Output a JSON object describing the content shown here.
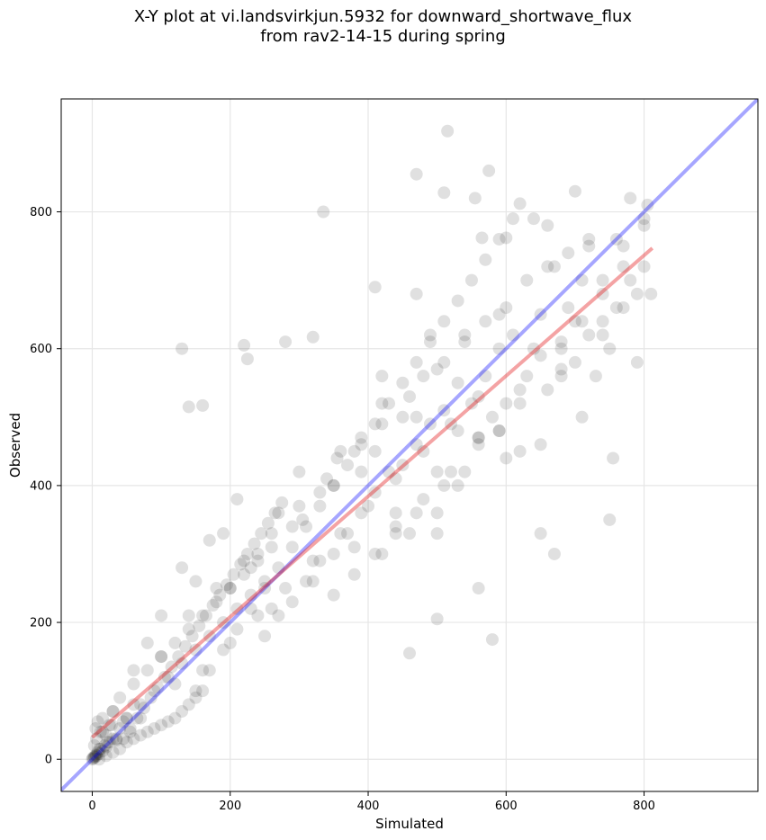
{
  "chart_data": {
    "type": "scatter",
    "title_lines": [
      "X-Y plot at vi.landsvirkjun.5932 for downward_shortwave_flux",
      "from rav2-14-15 during spring"
    ],
    "xlabel": "Simulated",
    "ylabel": "Observed",
    "xlim": [
      -45,
      965
    ],
    "ylim": [
      -47,
      965
    ],
    "xticks": [
      0,
      200,
      400,
      600,
      800
    ],
    "yticks": [
      0,
      200,
      400,
      600,
      800
    ],
    "grid": true,
    "colors": {
      "points": "#000000",
      "one_to_one": "#0000ff",
      "fit_line": "#e31a1c",
      "grid": "#e6e6e6"
    },
    "one_to_one_line": {
      "x": [
        -45,
        965
      ],
      "y": [
        -45,
        965
      ]
    },
    "fit_line": {
      "x": [
        0,
        812
      ],
      "y": [
        32,
        747
      ]
    },
    "points": {
      "x": [
        0,
        1,
        2,
        3,
        4,
        5,
        6,
        8,
        10,
        12,
        15,
        18,
        20,
        25,
        30,
        35,
        5,
        8,
        12,
        15,
        20,
        25,
        30,
        40,
        50,
        60,
        3,
        6,
        10,
        15,
        22,
        28,
        35,
        45,
        55,
        70,
        30,
        40,
        50,
        60,
        70,
        80,
        90,
        100,
        110,
        120,
        130,
        140,
        150,
        160,
        170,
        180,
        190,
        200,
        210,
        220,
        230,
        240,
        250,
        260,
        45,
        55,
        65,
        75,
        85,
        95,
        105,
        115,
        125,
        135,
        145,
        155,
        165,
        175,
        185,
        195,
        205,
        215,
        225,
        235,
        245,
        255,
        265,
        275,
        100,
        120,
        140,
        160,
        180,
        200,
        220,
        240,
        260,
        280,
        300,
        320,
        340,
        360,
        380,
        400,
        420,
        440,
        460,
        480,
        500,
        520,
        540,
        560,
        150,
        170,
        190,
        210,
        230,
        250,
        270,
        290,
        310,
        330,
        350,
        370,
        390,
        410,
        430,
        450,
        470,
        490,
        510,
        530,
        550,
        570,
        590,
        610,
        200,
        230,
        260,
        290,
        320,
        350,
        380,
        410,
        440,
        470,
        500,
        530,
        560,
        590,
        620,
        650,
        680,
        710,
        740,
        770,
        790,
        805,
        130,
        140,
        160,
        220,
        225,
        280,
        305,
        320,
        335,
        355,
        390,
        410,
        420,
        470,
        515,
        510,
        555,
        565,
        575,
        600,
        620,
        640,
        660,
        700,
        700,
        720,
        740,
        760,
        780,
        800,
        810,
        790,
        770,
        750,
        730,
        710,
        690,
        670,
        650,
        630,
        610,
        590,
        570,
        550,
        530,
        510,
        490,
        470,
        60,
        80,
        100,
        130,
        150,
        170,
        190,
        210,
        240,
        270,
        300,
        330,
        360,
        390,
        420,
        450,
        480,
        510,
        540,
        570,
        600,
        630,
        660,
        690,
        420,
        440,
        460,
        480,
        500,
        520,
        540,
        560,
        580,
        600,
        620,
        640,
        660,
        680,
        700,
        720,
        740,
        760,
        780,
        800,
        350,
        380,
        410,
        440,
        470,
        500,
        530,
        560,
        590,
        620,
        650,
        680,
        710,
        740,
        770,
        800,
        10,
        20,
        30,
        40,
        50,
        60,
        70,
        80,
        90,
        100,
        110,
        120,
        130,
        140,
        150,
        160,
        250,
        270,
        290,
        310,
        330,
        350,
        370,
        390,
        410,
        430,
        450,
        470,
        490,
        510,
        580,
        590,
        600,
        650,
        670,
        680,
        750,
        755,
        720,
        560,
        460,
        500
      ],
      "y": [
        0,
        2,
        1,
        4,
        3,
        6,
        5,
        10,
        8,
        15,
        12,
        20,
        18,
        25,
        30,
        28,
        45,
        55,
        40,
        60,
        35,
        50,
        70,
        45,
        60,
        80,
        20,
        30,
        15,
        40,
        25,
        50,
        30,
        55,
        40,
        60,
        70,
        90,
        60,
        110,
        80,
        130,
        100,
        150,
        120,
        170,
        140,
        190,
        160,
        210,
        180,
        230,
        200,
        250,
        220,
        270,
        240,
        290,
        260,
        310,
        30,
        45,
        60,
        75,
        90,
        105,
        120,
        135,
        150,
        165,
        180,
        195,
        210,
        225,
        240,
        255,
        270,
        285,
        300,
        315,
        330,
        345,
        360,
        375,
        150,
        110,
        210,
        130,
        250,
        170,
        290,
        210,
        330,
        250,
        370,
        290,
        410,
        330,
        450,
        370,
        490,
        410,
        530,
        450,
        570,
        490,
        610,
        530,
        100,
        130,
        160,
        190,
        220,
        250,
        280,
        310,
        340,
        370,
        400,
        430,
        460,
        490,
        520,
        550,
        580,
        610,
        640,
        670,
        700,
        730,
        760,
        790,
        250,
        280,
        220,
        340,
        260,
        400,
        310,
        450,
        360,
        500,
        420,
        550,
        470,
        600,
        520,
        650,
        570,
        700,
        620,
        750,
        680,
        810,
        600,
        515,
        517,
        605,
        585,
        610,
        350,
        617,
        800,
        440,
        420,
        690,
        560,
        855,
        918,
        828,
        820,
        762,
        860,
        762,
        812,
        790,
        780,
        830,
        640,
        750,
        700,
        760,
        820,
        790,
        680,
        580,
        660,
        600,
        560,
        500,
        660,
        720,
        460,
        560,
        620,
        480,
        560,
        520,
        480,
        400,
        620,
        680,
        130,
        170,
        210,
        280,
        260,
        320,
        330,
        380,
        300,
        360,
        420,
        390,
        450,
        470,
        520,
        500,
        560,
        580,
        620,
        640,
        660,
        700,
        720,
        740,
        300,
        340,
        330,
        380,
        360,
        420,
        420,
        470,
        500,
        520,
        450,
        600,
        540,
        560,
        580,
        620,
        640,
        660,
        700,
        720,
        240,
        270,
        300,
        330,
        360,
        330,
        400,
        460,
        480,
        540,
        590,
        610,
        640,
        680,
        720,
        780,
        0,
        5,
        10,
        15,
        25,
        30,
        35,
        40,
        45,
        50,
        55,
        60,
        70,
        80,
        90,
        100,
        180,
        210,
        230,
        260,
        290,
        300,
        330,
        360,
        390,
        420,
        430,
        460,
        490,
        510,
        175,
        650,
        440,
        330,
        300,
        600,
        350,
        440,
        760,
        250,
        155,
        205
      ]
    }
  }
}
